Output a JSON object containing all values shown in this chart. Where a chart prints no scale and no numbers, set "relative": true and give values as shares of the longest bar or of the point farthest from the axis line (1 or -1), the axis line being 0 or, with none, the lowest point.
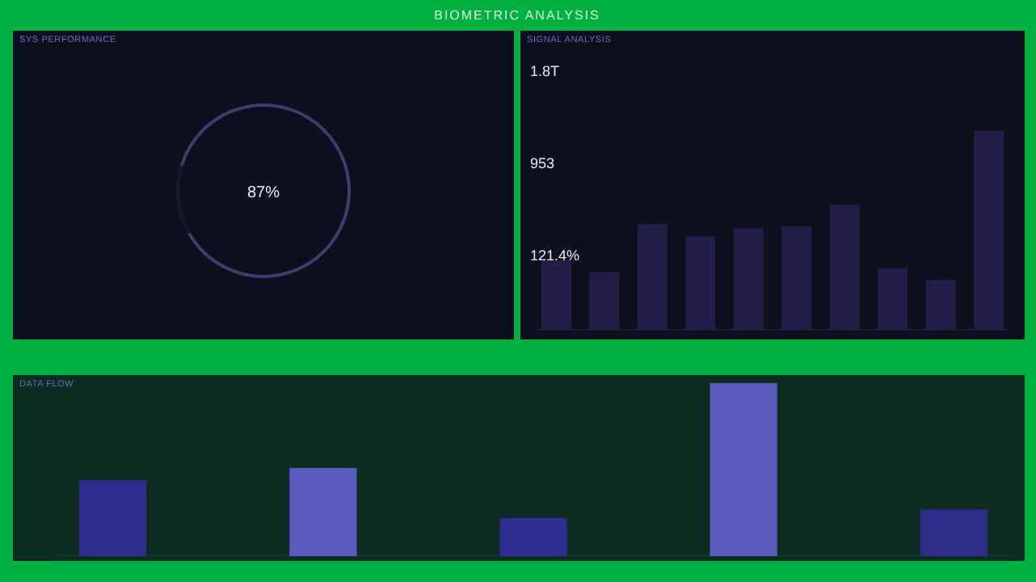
{
  "chart_data": [
    {
      "type": "other",
      "title": "BIOMETRIC ANALYSIS"
    },
    {
      "type": "donut",
      "title": "SYS PERFORMANCE",
      "categories": [
        null,
        null
      ],
      "values": [
        87,
        13
      ],
      "colors": [
        "#3b3f70",
        "#141a2c"
      ],
      "value_labels": [
        "87%",
        null
      ]
    },
    {
      "type": "bar",
      "title": "SIGNAL ANALYSIS",
      "relative": true,
      "categories": [
        null,
        null,
        null,
        null,
        null,
        null,
        null,
        null,
        null,
        null
      ],
      "values": [
        0.35,
        0.29,
        0.53,
        0.47,
        0.51,
        0.52,
        0.63,
        0.31,
        0.25,
        1
      ],
      "color": "#231d4a",
      "annotations": [
        "1.8T",
        "953",
        "121.4%"
      ]
    },
    {
      "type": "bar",
      "title": "DATA FLOW",
      "relative": true,
      "categories": [
        null,
        null,
        null,
        null,
        null
      ],
      "values": [
        0.44,
        0.51,
        0.22,
        1,
        0.27
      ],
      "colors": [
        "#2e2e8f",
        "#5b5bbf",
        "#2f2f94",
        "#5b5bbf",
        "#2f2f8a"
      ]
    }
  ]
}
